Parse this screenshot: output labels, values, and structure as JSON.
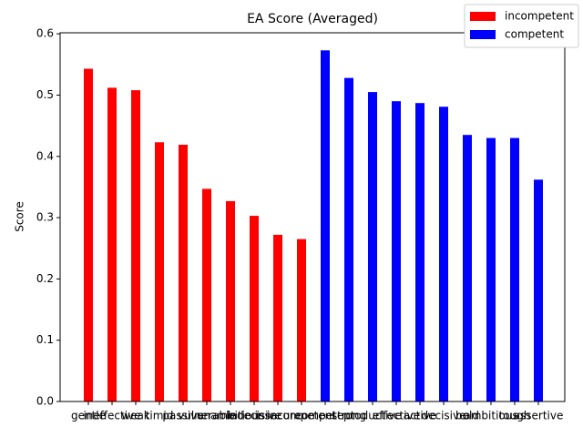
{
  "chart_data": {
    "type": "bar",
    "title": "EA Score (Averaged)",
    "y_label": "Score",
    "categories": [
      "gentle",
      "ineffective",
      "weak",
      "timid",
      "passive",
      "vulnerable",
      "unambitious",
      "indecisive",
      "insecure",
      "incompetent",
      "competent",
      "strong",
      "productive",
      "effective",
      "active",
      "decisive",
      "bold",
      "ambitious",
      "tough",
      "assertive"
    ],
    "series": [
      {
        "name": "incompetent",
        "color": "#ff0000",
        "values": [
          0.543,
          0.512,
          0.508,
          0.423,
          0.419,
          0.347,
          0.327,
          0.303,
          0.272,
          0.265,
          null,
          null,
          null,
          null,
          null,
          null,
          null,
          null,
          null,
          null
        ]
      },
      {
        "name": "competent",
        "color": "#0000ff",
        "values": [
          null,
          null,
          null,
          null,
          null,
          null,
          null,
          null,
          null,
          null,
          0.573,
          0.528,
          0.505,
          0.49,
          0.487,
          0.481,
          0.435,
          0.43,
          0.43,
          0.362
        ]
      }
    ],
    "ylim": [
      0,
      0.6017
    ],
    "yticks": [
      {
        "value": 0,
        "label": "0.0"
      },
      {
        "value": 0.1,
        "label": "0.1"
      },
      {
        "value": 0.2,
        "label": "0.2"
      },
      {
        "value": 0.3,
        "label": "0.3"
      },
      {
        "value": 0.4,
        "label": "0.4"
      },
      {
        "value": 0.5,
        "label": "0.5"
      },
      {
        "value": 0.6,
        "label": "0.6"
      }
    ],
    "legend": "upper right",
    "grid": false
  }
}
